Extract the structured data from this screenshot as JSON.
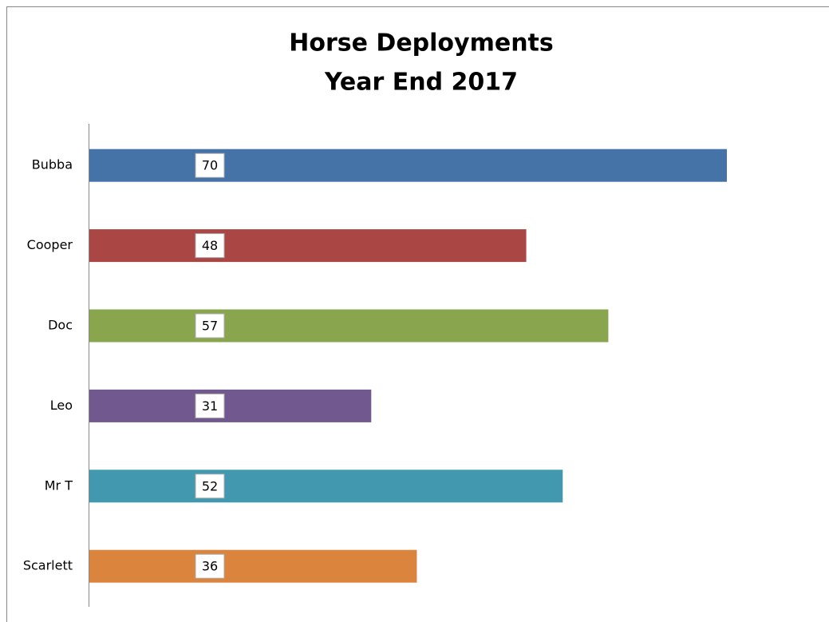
{
  "chart_data": {
    "type": "hbar",
    "title": "Horse Deployments",
    "subtitle": "Year End 2017",
    "categories": [
      "Bubba",
      "Cooper",
      "Doc",
      "Leo",
      "Mr T",
      "Scarlett"
    ],
    "values": [
      70,
      48,
      57,
      31,
      52,
      36
    ],
    "colors": [
      "#4572a7",
      "#aa4643",
      "#89a54e",
      "#71588f",
      "#4198af",
      "#db843d"
    ]
  }
}
